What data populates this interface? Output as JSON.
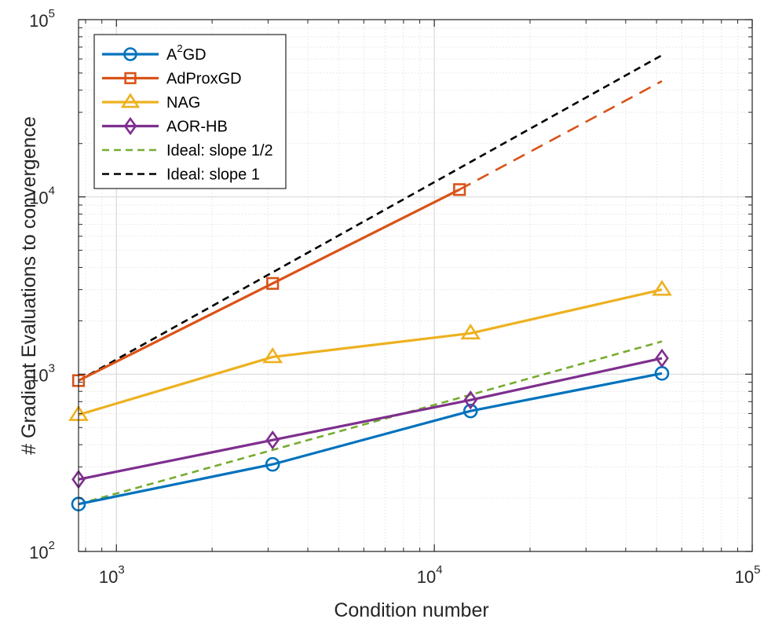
{
  "chart_data": {
    "type": "line",
    "xscale": "log",
    "yscale": "log",
    "xlim": [
      760,
      100000
    ],
    "ylim": [
      100,
      100000
    ],
    "grid": true,
    "minor_grid": true,
    "legend_position": "top-left",
    "xlabel": "Condition number",
    "ylabel": "# Gradient Evaluations to convergence",
    "x_ticks": [
      {
        "value": 1000,
        "base": "10",
        "exp": "3"
      },
      {
        "value": 10000,
        "base": "10",
        "exp": "4"
      },
      {
        "value": 100000,
        "base": "10",
        "exp": "5"
      }
    ],
    "y_ticks": [
      {
        "value": 100,
        "base": "10",
        "exp": "2"
      },
      {
        "value": 1000,
        "base": "10",
        "exp": "3"
      },
      {
        "value": 10000,
        "base": "10",
        "exp": "4"
      },
      {
        "value": 100000,
        "base": "10",
        "exp": "5"
      }
    ],
    "series": [
      {
        "name": "A2GD",
        "label_main": "A",
        "label_sup": "2",
        "label_rest": "GD",
        "color": "#0072BD",
        "marker": "circle",
        "line": "solid",
        "x": [
          760,
          3100,
          13000,
          52000
        ],
        "y": [
          185,
          310,
          620,
          1010
        ]
      },
      {
        "name": "AdProxGD",
        "label_main": "AdProxGD",
        "color": "#D95319",
        "marker": "square",
        "line": "solid",
        "x": [
          760,
          3100,
          12000
        ],
        "y": [
          920,
          3250,
          11000
        ]
      },
      {
        "name": "AdProxGD extrapolation",
        "color": "#D95319",
        "marker": "none",
        "line": "dashed",
        "in_legend": false,
        "x": [
          12000,
          52000
        ],
        "y": [
          11000,
          45000
        ]
      },
      {
        "name": "NAG",
        "label_main": "NAG",
        "color": "#EDB120",
        "marker": "triangle",
        "line": "solid",
        "x": [
          760,
          3100,
          13000,
          52000
        ],
        "y": [
          590,
          1250,
          1700,
          3000
        ]
      },
      {
        "name": "AOR-HB",
        "label_main": "AOR-HB",
        "color": "#7E2F8E",
        "marker": "diamond",
        "line": "solid",
        "x": [
          760,
          3100,
          13000,
          52000
        ],
        "y": [
          255,
          425,
          715,
          1230
        ]
      },
      {
        "name": "Ideal: slope 1/2",
        "label_main": "Ideal: slope 1/2",
        "color": "#77AC30",
        "marker": "none",
        "line": "dashed",
        "x": [
          760,
          52000
        ],
        "y": [
          185,
          1530
        ]
      },
      {
        "name": "Ideal: slope 1",
        "label_main": "Ideal: slope 1",
        "color": "#000000",
        "marker": "none",
        "line": "dashed",
        "x": [
          760,
          52000
        ],
        "y": [
          920,
          63000
        ]
      }
    ]
  }
}
